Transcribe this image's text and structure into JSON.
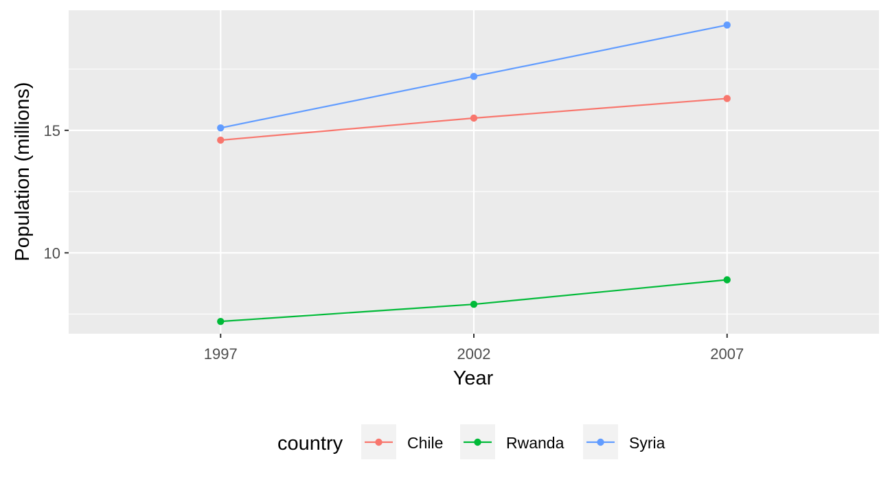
{
  "chart_data": {
    "type": "line",
    "xlabel": "Year",
    "ylabel": "Population (millions)",
    "x": [
      1997,
      2002,
      2007
    ],
    "xticks": [
      "1997",
      "2002",
      "2007"
    ],
    "yticks": [
      10,
      15
    ],
    "xlim": [
      1994,
      2010
    ],
    "ylim": [
      6.7,
      19.9
    ],
    "grid": true,
    "legend": {
      "title": "country",
      "position": "bottom"
    },
    "series": [
      {
        "name": "Chile",
        "color": "#F8766D",
        "values": [
          14.6,
          15.5,
          16.3
        ]
      },
      {
        "name": "Rwanda",
        "color": "#00BA38",
        "values": [
          7.2,
          7.9,
          8.9
        ]
      },
      {
        "name": "Syria",
        "color": "#619CFF",
        "values": [
          15.1,
          17.2,
          19.3
        ]
      }
    ]
  }
}
